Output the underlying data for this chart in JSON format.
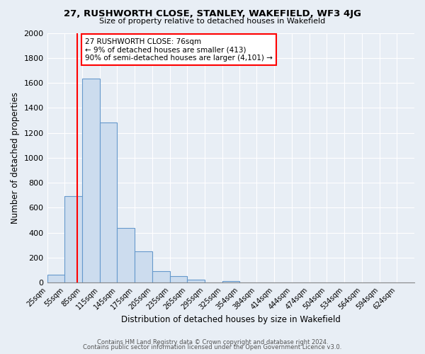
{
  "title1": "27, RUSHWORTH CLOSE, STANLEY, WAKEFIELD, WF3 4JG",
  "title2": "Size of property relative to detached houses in Wakefield",
  "xlabel": "Distribution of detached houses by size in Wakefield",
  "ylabel": "Number of detached properties",
  "bin_labels": [
    "25sqm",
    "55sqm",
    "85sqm",
    "115sqm",
    "145sqm",
    "175sqm",
    "205sqm",
    "235sqm",
    "265sqm",
    "295sqm",
    "325sqm",
    "354sqm",
    "384sqm",
    "414sqm",
    "444sqm",
    "474sqm",
    "504sqm",
    "534sqm",
    "564sqm",
    "594sqm",
    "624sqm"
  ],
  "bar_heights": [
    65,
    690,
    1635,
    1285,
    435,
    250,
    90,
    50,
    25,
    0,
    15,
    0,
    0,
    0,
    0,
    0,
    0,
    0,
    0,
    0,
    0
  ],
  "bar_color": "#ccdcee",
  "bar_edgecolor": "#6699cc",
  "bar_linewidth": 0.8,
  "ylim": [
    0,
    2000
  ],
  "yticks": [
    0,
    200,
    400,
    600,
    800,
    1000,
    1200,
    1400,
    1600,
    1800,
    2000
  ],
  "red_line_x": 76,
  "annotation_text": "27 RUSHWORTH CLOSE: 76sqm\n← 9% of detached houses are smaller (413)\n90% of semi-detached houses are larger (4,101) →",
  "annotation_box_edgecolor": "red",
  "red_line_color": "red",
  "footer1": "Contains HM Land Registry data © Crown copyright and database right 2024.",
  "footer2": "Contains public sector information licensed under the Open Government Licence v3.0.",
  "bg_color": "#e8eef5",
  "grid_color": "#ffffff",
  "bin_edges": [
    25,
    55,
    85,
    115,
    145,
    175,
    205,
    235,
    265,
    295,
    325,
    354,
    384,
    414,
    444,
    474,
    504,
    534,
    564,
    594,
    624,
    654
  ]
}
